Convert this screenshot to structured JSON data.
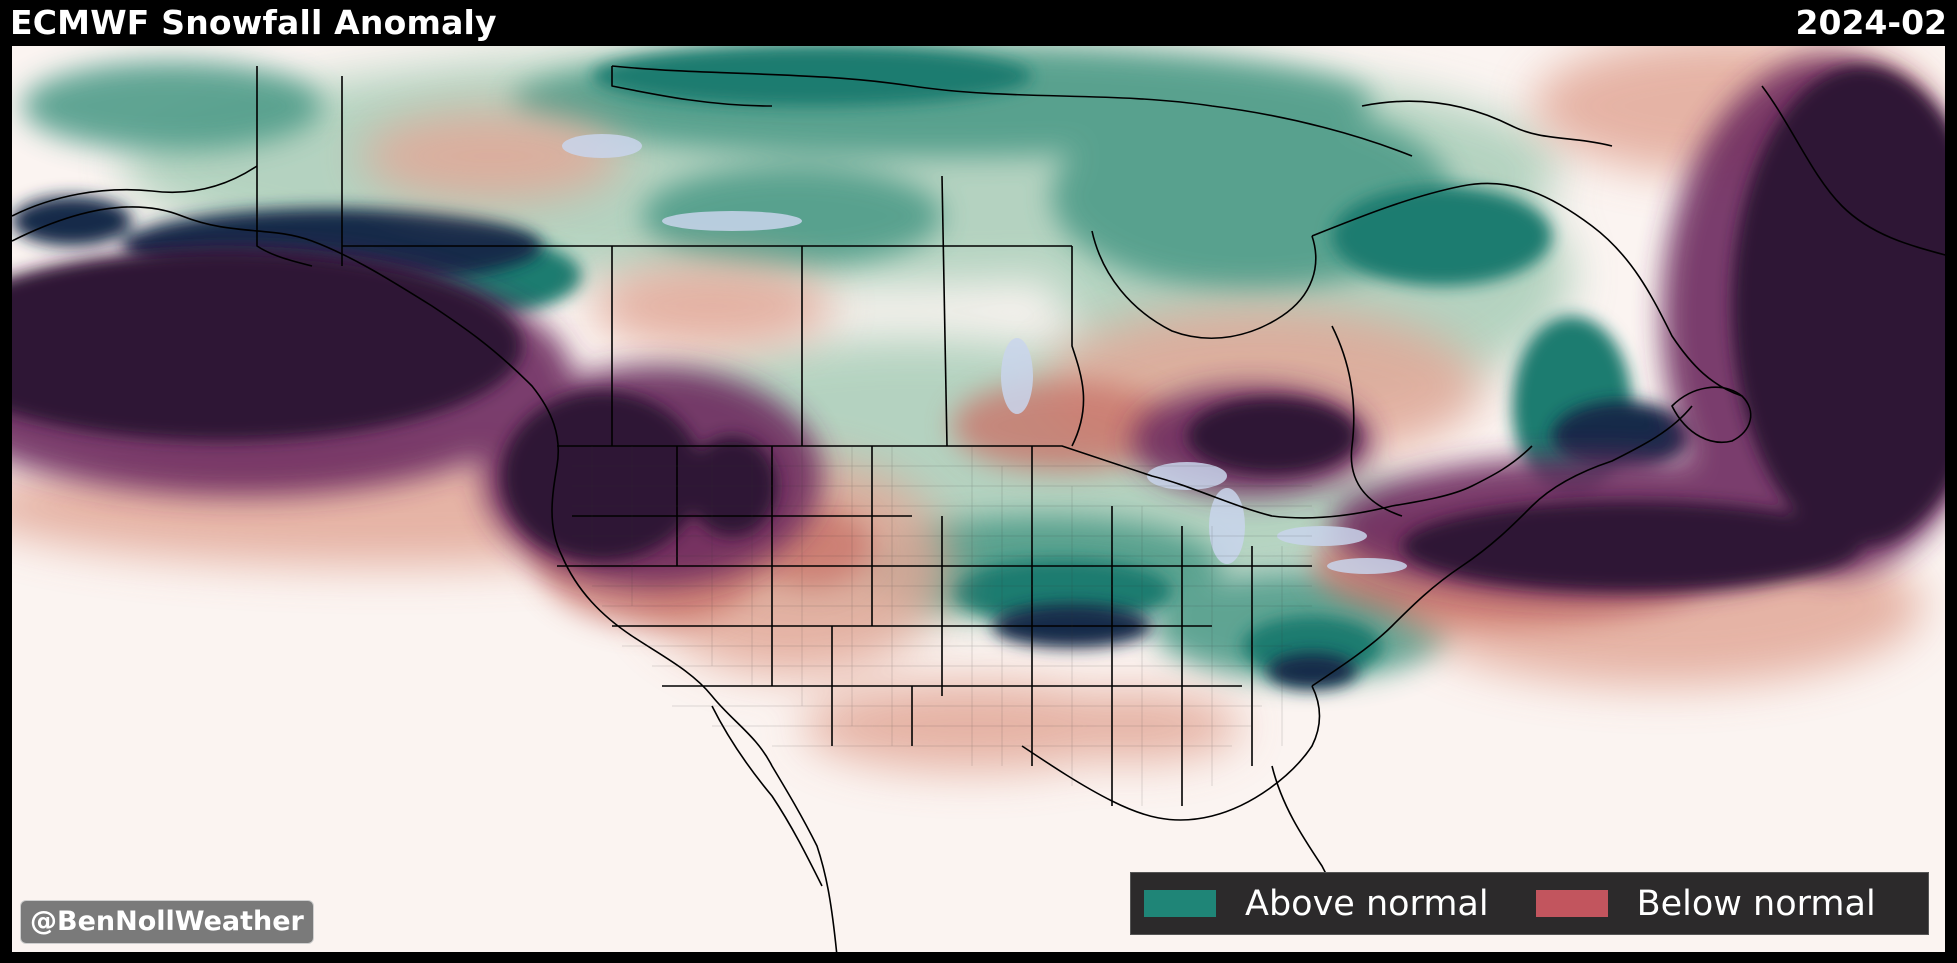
{
  "header": {
    "title": "ECMWF Snowfall Anomaly",
    "period": "2024-02"
  },
  "credit": "@BenNollWeather",
  "legend": {
    "items": [
      {
        "label": "Above normal",
        "color": "#1f8577"
      },
      {
        "label": "Below normal",
        "color": "#c2555e"
      }
    ]
  },
  "colors": {
    "background": "#fbf4f1",
    "strong_above": "#182b4a",
    "above": "#1f7d73",
    "light_above": "#9fcab4",
    "below": "#d88d7b",
    "strong_below": "#2d1634",
    "water": "#c8d6ec"
  }
}
